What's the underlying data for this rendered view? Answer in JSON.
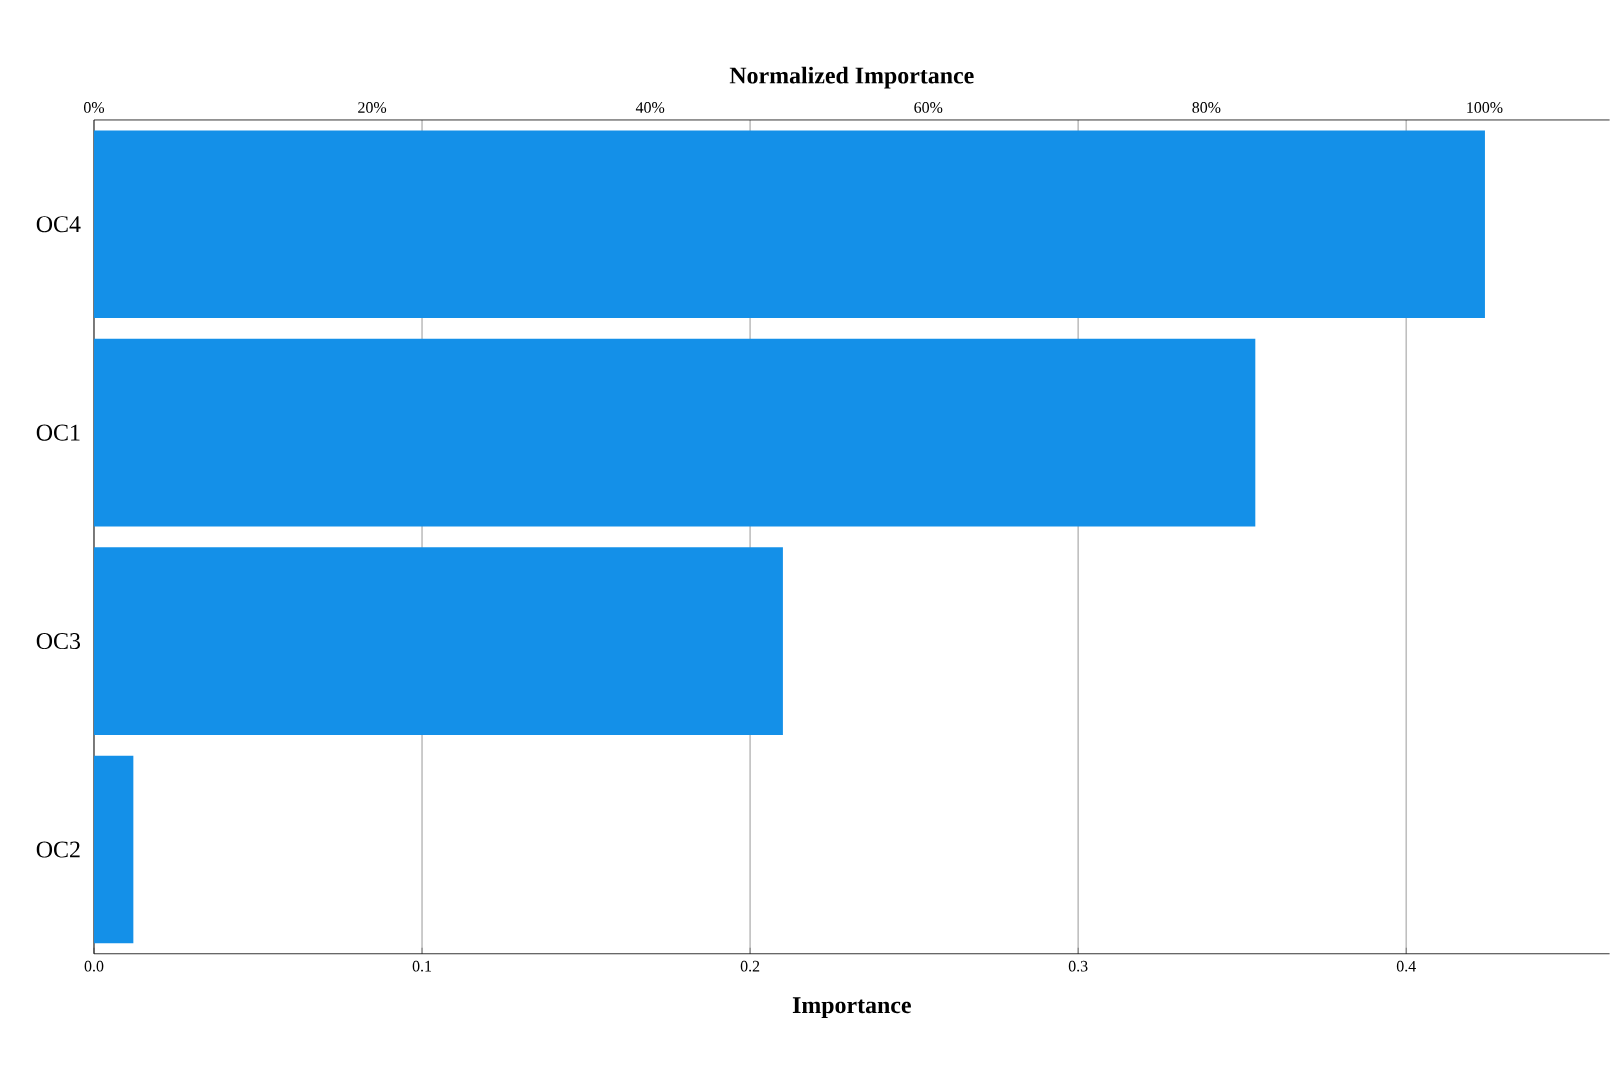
{
  "chart_data": {
    "type": "bar",
    "orientation": "horizontal",
    "categories": [
      "OC4",
      "OC1",
      "OC3",
      "OC2"
    ],
    "values": [
      0.424,
      0.354,
      0.21,
      0.012
    ],
    "color": "#1490e8",
    "xlabel": "Importance",
    "xlim": [
      0,
      0.462
    ],
    "xticks": [
      {
        "value": 0,
        "label": "0.0"
      },
      0.1,
      0.2,
      0.3,
      0.4
    ],
    "x2label": "Normalized Importance",
    "x2lim": [
      0,
      109
    ],
    "x2ticks": [
      {
        "value": 0,
        "label": "0%"
      },
      {
        "value": 20,
        "label": "20%"
      },
      {
        "value": 40,
        "label": "40%"
      },
      {
        "value": 60,
        "label": "60%"
      },
      {
        "value": 80,
        "label": "80%"
      },
      {
        "value": 100,
        "label": "100%"
      }
    ],
    "grid": "x"
  }
}
